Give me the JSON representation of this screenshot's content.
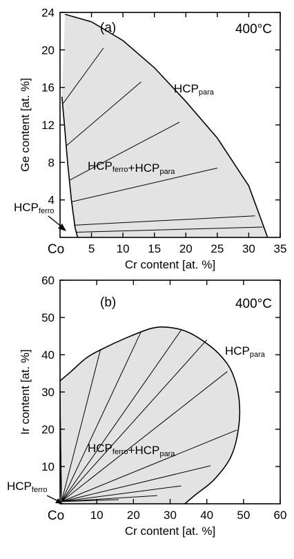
{
  "chart_data": [
    {
      "type": "phase-diagram",
      "panel": "(a)",
      "temperature": "400°C",
      "xlabel": "Cr content [at. %]",
      "ylabel": "Ge content [at. %]",
      "origin_label": "Co",
      "xlim": [
        0,
        35
      ],
      "ylim": [
        0,
        24
      ],
      "x_ticks": [
        5,
        10,
        15,
        20,
        25,
        30,
        35
      ],
      "y_ticks": [
        4,
        8,
        12,
        16,
        20,
        24
      ],
      "region_labels": {
        "para": {
          "base": "HCP",
          "sub": "para"
        },
        "two_phase": [
          {
            "base": "HCP",
            "sub": "ferro"
          },
          {
            "text": "+"
          },
          {
            "base": "HCP",
            "sub": "para"
          }
        ],
        "ferro": {
          "base": "HCP",
          "sub": "ferro"
        }
      },
      "boundary_para": [
        [
          0.8,
          23.8
        ],
        [
          5,
          23
        ],
        [
          10,
          21
        ],
        [
          15,
          18.1
        ],
        [
          20,
          14.5
        ],
        [
          25,
          10.6
        ],
        [
          30,
          5.5
        ],
        [
          33,
          0
        ]
      ],
      "boundary_ferro": [
        [
          0.3,
          15
        ],
        [
          0.7,
          12
        ],
        [
          1.2,
          8
        ],
        [
          1.8,
          4
        ],
        [
          2.4,
          1
        ],
        [
          2.8,
          0
        ]
      ],
      "tie_lines": [
        [
          [
            0.8,
            23.8
          ],
          [
            0.8,
            23.8
          ]
        ],
        [
          [
            0.5,
            14.3
          ],
          [
            6.9,
            20.2
          ]
        ],
        [
          [
            1.05,
            9.8
          ],
          [
            12.9,
            16.6
          ]
        ],
        [
          [
            1.5,
            6.1
          ],
          [
            19,
            12.3
          ]
        ],
        [
          [
            1.85,
            3.8
          ],
          [
            25,
            7.4
          ]
        ],
        [
          [
            2.2,
            1.3
          ],
          [
            31,
            2.3
          ]
        ],
        [
          [
            2.5,
            0.55
          ],
          [
            32.2,
            1.1
          ]
        ]
      ]
    },
    {
      "type": "phase-diagram",
      "panel": "(b)",
      "temperature": "400°C",
      "xlabel": "Cr content [at. %]",
      "ylabel": "Ir content [at. %]",
      "origin_label": "Co",
      "xlim": [
        0,
        60
      ],
      "ylim": [
        0,
        60
      ],
      "x_ticks": [
        10,
        20,
        30,
        40,
        50,
        60
      ],
      "y_ticks": [
        10,
        20,
        30,
        40,
        50,
        60
      ],
      "region_labels": {
        "para": {
          "base": "HCP",
          "sub": "para"
        },
        "two_phase": [
          {
            "base": "HCP",
            "sub": "ferro"
          },
          {
            "text": "+"
          },
          {
            "base": "HCP",
            "sub": "para"
          }
        ],
        "ferro": {
          "base": "HCP",
          "sub": "ferro"
        }
      },
      "boundary": [
        [
          0,
          33
        ],
        [
          3,
          35.5
        ],
        [
          7,
          39
        ],
        [
          11,
          41.3
        ],
        [
          18,
          44.5
        ],
        [
          25,
          47.1
        ],
        [
          30,
          47.3
        ],
        [
          35,
          46
        ],
        [
          40,
          43
        ],
        [
          44,
          39.5
        ],
        [
          47,
          35
        ],
        [
          48.8,
          28
        ],
        [
          48.6,
          20
        ],
        [
          46.5,
          12.5
        ],
        [
          42,
          6.5
        ],
        [
          37,
          2.5
        ],
        [
          34,
          0
        ]
      ],
      "ferro_corner": [
        0.4,
        0.6
      ],
      "tie_ends": [
        [
          0,
          32
        ],
        [
          0,
          28
        ],
        [
          0,
          21
        ],
        [
          0,
          12.5
        ],
        [
          11,
          41.3
        ],
        [
          22,
          46
        ],
        [
          33,
          46.6
        ],
        [
          40,
          44
        ],
        [
          45.6,
          35.5
        ],
        [
          48.2,
          19.8
        ],
        [
          41,
          10.2
        ],
        [
          33,
          4.8
        ],
        [
          26.5,
          2.2
        ],
        [
          16,
          1.1
        ]
      ]
    }
  ]
}
